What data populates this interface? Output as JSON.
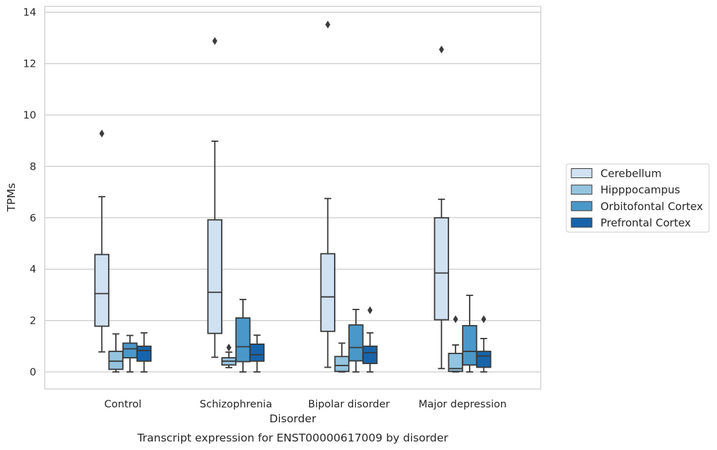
{
  "chart_data": {
    "type": "boxplot",
    "title": "Transcript expression for ENST00000617009 by disorder",
    "xlabel": "Disorder",
    "ylabel": "TPMs",
    "ylim": [
      -0.65,
      14.2
    ],
    "yticks": [
      0,
      2,
      4,
      6,
      8,
      10,
      12,
      14
    ],
    "grid": true,
    "legend_position": "right",
    "categories": [
      "Control",
      "Schizophrenia",
      "Bipolar disorder",
      "Major depression"
    ],
    "series": [
      {
        "name": "Cerebellum",
        "color": "#d0e1f2",
        "boxes": [
          {
            "whislo": 0.78,
            "q1": 1.78,
            "med": 3.05,
            "q3": 4.57,
            "whishi": 6.82,
            "fliers": [
              9.28
            ]
          },
          {
            "whislo": 0.57,
            "q1": 1.5,
            "med": 3.1,
            "q3": 5.92,
            "whishi": 8.98,
            "fliers": [
              12.88
            ]
          },
          {
            "whislo": 0.18,
            "q1": 1.58,
            "med": 2.92,
            "q3": 4.6,
            "whishi": 6.75,
            "fliers": [
              13.52
            ]
          },
          {
            "whislo": 0.13,
            "q1": 2.03,
            "med": 3.85,
            "q3": 6.0,
            "whishi": 6.72,
            "fliers": [
              12.55
            ]
          }
        ]
      },
      {
        "name": "Hipppocampus",
        "color": "#94c4df",
        "boxes": [
          {
            "whislo": 0.0,
            "q1": 0.1,
            "med": 0.42,
            "q3": 0.8,
            "whishi": 1.48,
            "fliers": []
          },
          {
            "whislo": 0.17,
            "q1": 0.27,
            "med": 0.42,
            "q3": 0.55,
            "whishi": 0.77,
            "fliers": [
              0.95
            ]
          },
          {
            "whislo": 0.0,
            "q1": 0.02,
            "med": 0.25,
            "q3": 0.6,
            "whishi": 1.12,
            "fliers": []
          },
          {
            "whislo": 0.0,
            "q1": 0.02,
            "med": 0.13,
            "q3": 0.72,
            "whishi": 1.05,
            "fliers": [
              2.05
            ]
          }
        ]
      },
      {
        "name": "Orbitofontal Cortex",
        "color": "#4a98c9",
        "boxes": [
          {
            "whislo": 0.0,
            "q1": 0.55,
            "med": 0.9,
            "q3": 1.12,
            "whishi": 1.42,
            "fliers": []
          },
          {
            "whislo": 0.0,
            "q1": 0.4,
            "med": 0.98,
            "q3": 2.1,
            "whishi": 2.82,
            "fliers": []
          },
          {
            "whislo": 0.0,
            "q1": 0.43,
            "med": 0.95,
            "q3": 1.83,
            "whishi": 2.43,
            "fliers": []
          },
          {
            "whislo": 0.0,
            "q1": 0.27,
            "med": 0.8,
            "q3": 1.8,
            "whishi": 2.98,
            "fliers": []
          }
        ]
      },
      {
        "name": "Prefrontal Cortex",
        "color": "#1764ab",
        "boxes": [
          {
            "whislo": 0.0,
            "q1": 0.42,
            "med": 0.83,
            "q3": 1.0,
            "whishi": 1.52,
            "fliers": []
          },
          {
            "whislo": 0.0,
            "q1": 0.42,
            "med": 0.67,
            "q3": 1.08,
            "whishi": 1.43,
            "fliers": []
          },
          {
            "whislo": 0.0,
            "q1": 0.33,
            "med": 0.75,
            "q3": 1.0,
            "whishi": 1.52,
            "fliers": [
              2.4
            ]
          },
          {
            "whislo": 0.0,
            "q1": 0.18,
            "med": 0.62,
            "q3": 0.8,
            "whishi": 1.3,
            "fliers": [
              2.05
            ]
          }
        ]
      }
    ]
  }
}
